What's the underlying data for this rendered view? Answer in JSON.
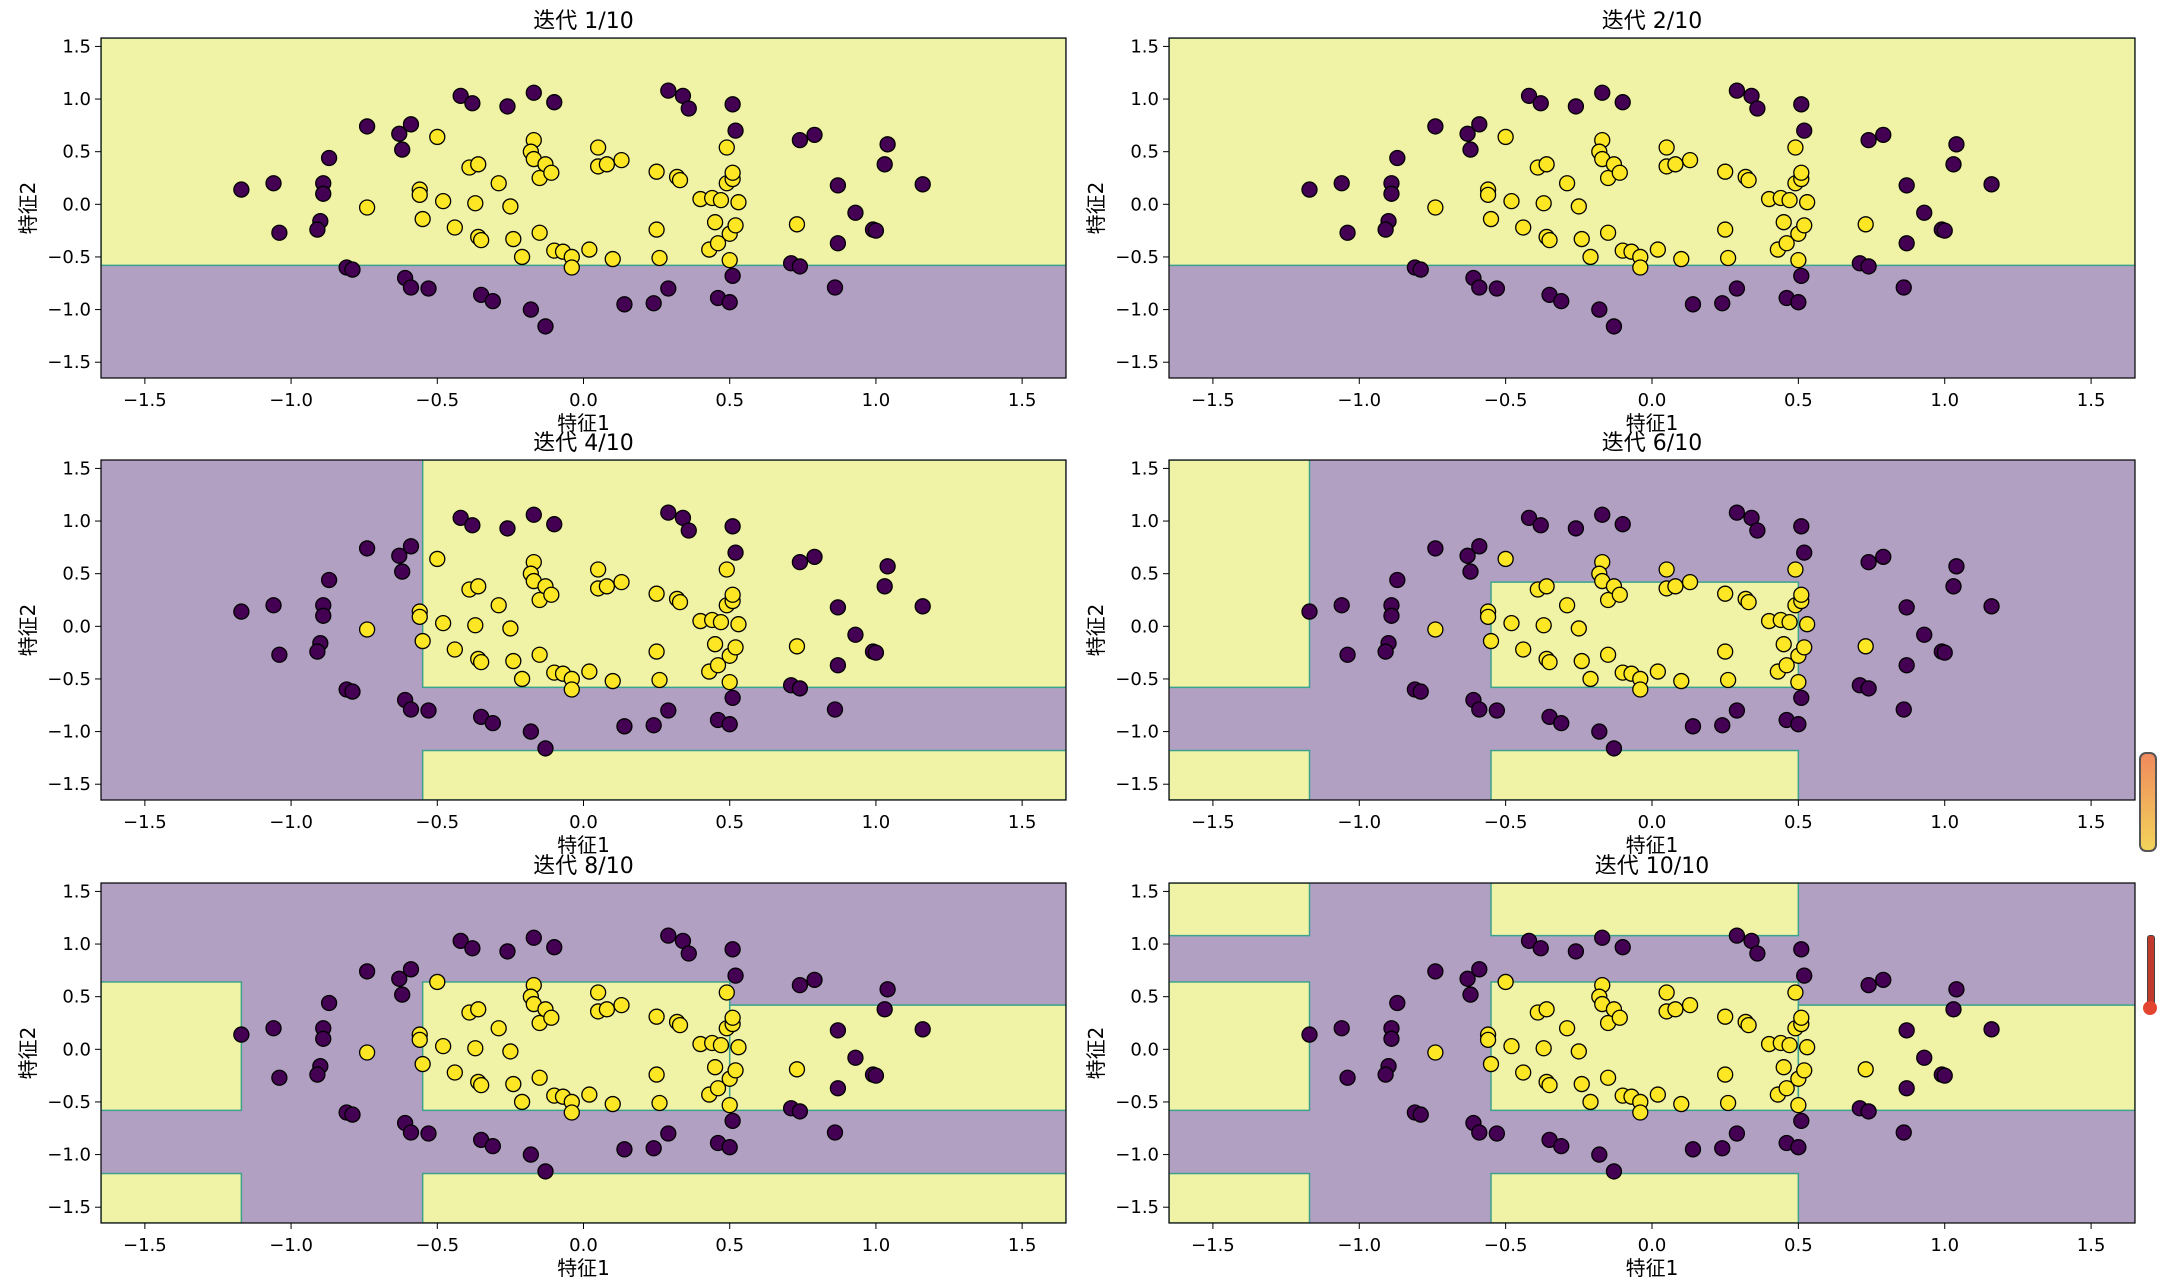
{
  "figure": {
    "xlabel": "特征1",
    "ylabel": "特征2",
    "xticks": [
      -1.5,
      -1.0,
      -0.5,
      0.0,
      0.5,
      1.0,
      1.5
    ],
    "yticks": [
      -1.5,
      -1.0,
      -0.5,
      0.0,
      0.5,
      1.0,
      1.5
    ],
    "colors": {
      "class0_region": "#b2a0c3",
      "class1_region": "#f0f2a6",
      "class0_point": "#440154",
      "class1_point": "#fde725",
      "boundary": "#3aa28d"
    }
  },
  "chart_data": [
    {
      "type": "scatter",
      "title": "迭代 1/10",
      "xlim": [
        -1.65,
        1.65
      ],
      "ylim": [
        -1.65,
        1.58
      ],
      "grid": false,
      "regions_class1": [
        [
          -1.65,
          1.65,
          -0.58,
          1.58
        ]
      ]
    },
    {
      "type": "scatter",
      "title": "迭代 2/10",
      "xlim": [
        -1.65,
        1.65
      ],
      "ylim": [
        -1.65,
        1.58
      ],
      "grid": false,
      "regions_class1": [
        [
          -1.65,
          1.65,
          -0.58,
          1.58
        ]
      ]
    },
    {
      "type": "scatter",
      "title": "迭代 4/10",
      "xlim": [
        -1.65,
        1.65
      ],
      "ylim": [
        -1.65,
        1.58
      ],
      "grid": false,
      "regions_class1": [
        [
          -0.55,
          1.65,
          -0.58,
          1.58
        ],
        [
          -0.55,
          1.65,
          -1.65,
          -1.18
        ]
      ]
    },
    {
      "type": "scatter",
      "title": "迭代 6/10",
      "xlim": [
        -1.65,
        1.65
      ],
      "ylim": [
        -1.65,
        1.58
      ],
      "grid": false,
      "regions_class1": [
        [
          -1.65,
          -1.17,
          -0.58,
          1.58
        ],
        [
          -1.65,
          -1.17,
          -1.65,
          -1.18
        ],
        [
          -0.55,
          0.5,
          -0.58,
          0.42
        ],
        [
          -0.55,
          0.5,
          -1.65,
          -1.18
        ]
      ]
    },
    {
      "type": "scatter",
      "title": "迭代 8/10",
      "xlim": [
        -1.65,
        1.65
      ],
      "ylim": [
        -1.65,
        1.58
      ],
      "grid": false,
      "regions_class1": [
        [
          -1.65,
          -1.17,
          -0.58,
          0.64
        ],
        [
          -1.65,
          -1.17,
          -1.65,
          -1.18
        ],
        [
          -0.55,
          0.5,
          -0.58,
          0.64
        ],
        [
          0.5,
          1.65,
          -0.58,
          0.42
        ],
        [
          -0.55,
          1.65,
          -1.65,
          -1.18
        ]
      ]
    },
    {
      "type": "scatter",
      "title": "迭代 10/10",
      "xlim": [
        -1.65,
        1.65
      ],
      "ylim": [
        -1.65,
        1.58
      ],
      "grid": false,
      "regions_class1": [
        [
          -1.65,
          -1.17,
          1.08,
          1.58
        ],
        [
          -0.55,
          0.5,
          1.08,
          1.58
        ],
        [
          -1.65,
          -1.17,
          -0.58,
          0.64
        ],
        [
          -1.65,
          -1.17,
          -1.65,
          -1.18
        ],
        [
          -0.55,
          0.5,
          -0.58,
          0.64
        ],
        [
          0.5,
          1.65,
          -0.58,
          0.42
        ],
        [
          -0.55,
          0.5,
          -1.65,
          -1.18
        ]
      ]
    }
  ],
  "points": [
    {
      "x": -1.17,
      "y": 0.14,
      "c": 0
    },
    {
      "x": -1.06,
      "y": 0.2,
      "c": 0
    },
    {
      "x": -1.04,
      "y": -0.27,
      "c": 0
    },
    {
      "x": -0.89,
      "y": 0.2,
      "c": 0
    },
    {
      "x": -0.89,
      "y": 0.1,
      "c": 0
    },
    {
      "x": -0.9,
      "y": -0.16,
      "c": 0
    },
    {
      "x": -0.91,
      "y": -0.24,
      "c": 0
    },
    {
      "x": -0.87,
      "y": 0.44,
      "c": 0
    },
    {
      "x": -0.81,
      "y": -0.6,
      "c": 0
    },
    {
      "x": -0.79,
      "y": -0.62,
      "c": 0
    },
    {
      "x": -0.74,
      "y": 0.74,
      "c": 0
    },
    {
      "x": -0.63,
      "y": 0.67,
      "c": 0
    },
    {
      "x": -0.62,
      "y": 0.52,
      "c": 0
    },
    {
      "x": -0.59,
      "y": 0.76,
      "c": 0
    },
    {
      "x": -0.61,
      "y": -0.7,
      "c": 0
    },
    {
      "x": -0.59,
      "y": -0.79,
      "c": 0
    },
    {
      "x": -0.53,
      "y": -0.8,
      "c": 0
    },
    {
      "x": -0.42,
      "y": 1.03,
      "c": 0
    },
    {
      "x": -0.38,
      "y": 0.96,
      "c": 0
    },
    {
      "x": -0.26,
      "y": 0.93,
      "c": 0
    },
    {
      "x": -0.17,
      "y": 1.06,
      "c": 0
    },
    {
      "x": -0.1,
      "y": 0.97,
      "c": 0
    },
    {
      "x": -0.35,
      "y": -0.86,
      "c": 0
    },
    {
      "x": -0.31,
      "y": -0.92,
      "c": 0
    },
    {
      "x": -0.18,
      "y": -1.0,
      "c": 0
    },
    {
      "x": -0.13,
      "y": -1.16,
      "c": 0
    },
    {
      "x": 0.14,
      "y": -0.95,
      "c": 0
    },
    {
      "x": 0.24,
      "y": -0.94,
      "c": 0
    },
    {
      "x": 0.29,
      "y": -0.8,
      "c": 0
    },
    {
      "x": 0.29,
      "y": 1.08,
      "c": 0
    },
    {
      "x": 0.34,
      "y": 1.03,
      "c": 0
    },
    {
      "x": 0.36,
      "y": 0.91,
      "c": 0
    },
    {
      "x": 0.46,
      "y": -0.89,
      "c": 0
    },
    {
      "x": 0.5,
      "y": -0.93,
      "c": 0
    },
    {
      "x": 0.51,
      "y": 0.95,
      "c": 0
    },
    {
      "x": 0.52,
      "y": 0.7,
      "c": 0
    },
    {
      "x": 0.51,
      "y": -0.68,
      "c": 0
    },
    {
      "x": 0.71,
      "y": -0.56,
      "c": 0
    },
    {
      "x": 0.74,
      "y": -0.59,
      "c": 0
    },
    {
      "x": 0.74,
      "y": 0.61,
      "c": 0
    },
    {
      "x": 0.79,
      "y": 0.66,
      "c": 0
    },
    {
      "x": 0.87,
      "y": 0.18,
      "c": 0
    },
    {
      "x": 0.87,
      "y": -0.37,
      "c": 0
    },
    {
      "x": 0.86,
      "y": -0.79,
      "c": 0
    },
    {
      "x": 0.93,
      "y": -0.08,
      "c": 0
    },
    {
      "x": 0.99,
      "y": -0.24,
      "c": 0
    },
    {
      "x": 1.0,
      "y": -0.25,
      "c": 0
    },
    {
      "x": 1.04,
      "y": 0.57,
      "c": 0
    },
    {
      "x": 1.03,
      "y": 0.38,
      "c": 0
    },
    {
      "x": 1.16,
      "y": 0.19,
      "c": 0
    },
    {
      "x": -0.74,
      "y": -0.03,
      "c": 1
    },
    {
      "x": -0.56,
      "y": 0.14,
      "c": 1
    },
    {
      "x": -0.56,
      "y": 0.09,
      "c": 1
    },
    {
      "x": -0.55,
      "y": -0.14,
      "c": 1
    },
    {
      "x": -0.5,
      "y": 0.64,
      "c": 1
    },
    {
      "x": -0.48,
      "y": 0.03,
      "c": 1
    },
    {
      "x": -0.44,
      "y": -0.22,
      "c": 1
    },
    {
      "x": -0.39,
      "y": 0.35,
      "c": 1
    },
    {
      "x": -0.36,
      "y": 0.38,
      "c": 1
    },
    {
      "x": -0.37,
      "y": 0.01,
      "c": 1
    },
    {
      "x": -0.36,
      "y": -0.31,
      "c": 1
    },
    {
      "x": -0.35,
      "y": -0.34,
      "c": 1
    },
    {
      "x": -0.29,
      "y": 0.2,
      "c": 1
    },
    {
      "x": -0.25,
      "y": -0.02,
      "c": 1
    },
    {
      "x": -0.24,
      "y": -0.33,
      "c": 1
    },
    {
      "x": -0.21,
      "y": -0.5,
      "c": 1
    },
    {
      "x": -0.17,
      "y": 0.61,
      "c": 1
    },
    {
      "x": -0.18,
      "y": 0.5,
      "c": 1
    },
    {
      "x": -0.17,
      "y": 0.43,
      "c": 1
    },
    {
      "x": -0.15,
      "y": 0.25,
      "c": 1
    },
    {
      "x": -0.13,
      "y": 0.38,
      "c": 1
    },
    {
      "x": -0.11,
      "y": 0.3,
      "c": 1
    },
    {
      "x": -0.15,
      "y": -0.27,
      "c": 1
    },
    {
      "x": -0.1,
      "y": -0.44,
      "c": 1
    },
    {
      "x": -0.07,
      "y": -0.45,
      "c": 1
    },
    {
      "x": -0.04,
      "y": -0.5,
      "c": 1
    },
    {
      "x": -0.04,
      "y": -0.6,
      "c": 1
    },
    {
      "x": 0.02,
      "y": -0.43,
      "c": 1
    },
    {
      "x": 0.05,
      "y": 0.54,
      "c": 1
    },
    {
      "x": 0.05,
      "y": 0.36,
      "c": 1
    },
    {
      "x": 0.08,
      "y": 0.38,
      "c": 1
    },
    {
      "x": 0.13,
      "y": 0.42,
      "c": 1
    },
    {
      "x": 0.1,
      "y": -0.52,
      "c": 1
    },
    {
      "x": 0.25,
      "y": -0.24,
      "c": 1
    },
    {
      "x": 0.25,
      "y": 0.31,
      "c": 1
    },
    {
      "x": 0.26,
      "y": -0.51,
      "c": 1
    },
    {
      "x": 0.32,
      "y": 0.26,
      "c": 1
    },
    {
      "x": 0.33,
      "y": 0.23,
      "c": 1
    },
    {
      "x": 0.4,
      "y": 0.05,
      "c": 1
    },
    {
      "x": 0.43,
      "y": -0.43,
      "c": 1
    },
    {
      "x": 0.44,
      "y": 0.06,
      "c": 1
    },
    {
      "x": 0.45,
      "y": -0.17,
      "c": 1
    },
    {
      "x": 0.46,
      "y": -0.37,
      "c": 1
    },
    {
      "x": 0.47,
      "y": 0.04,
      "c": 1
    },
    {
      "x": 0.49,
      "y": 0.54,
      "c": 1
    },
    {
      "x": 0.49,
      "y": 0.2,
      "c": 1
    },
    {
      "x": 0.5,
      "y": -0.28,
      "c": 1
    },
    {
      "x": 0.5,
      "y": -0.53,
      "c": 1
    },
    {
      "x": 0.51,
      "y": 0.24,
      "c": 1
    },
    {
      "x": 0.52,
      "y": -0.2,
      "c": 1
    },
    {
      "x": 0.53,
      "y": 0.02,
      "c": 1
    },
    {
      "x": 0.51,
      "y": 0.3,
      "c": 1
    },
    {
      "x": 0.73,
      "y": -0.19,
      "c": 1
    }
  ]
}
